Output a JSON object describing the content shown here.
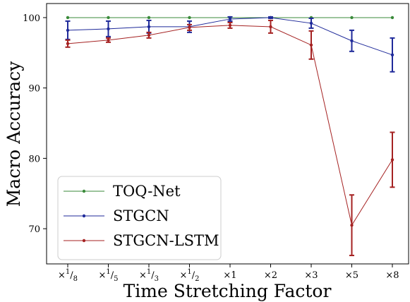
{
  "chart_data": {
    "type": "line",
    "xlabel": "Time Stretching Factor",
    "ylabel": "Macro Accuracy",
    "ylim": [
      65,
      102
    ],
    "yticks": [
      70,
      80,
      90,
      100
    ],
    "grid": false,
    "legend_position": "lower-left",
    "categories": [
      {
        "prefix": "×",
        "num": "1",
        "den": "8"
      },
      {
        "prefix": "×",
        "num": "1",
        "den": "5"
      },
      {
        "prefix": "×",
        "num": "1",
        "den": "3"
      },
      {
        "prefix": "×",
        "num": "1",
        "den": "2"
      },
      {
        "prefix": "×1"
      },
      {
        "prefix": "×2"
      },
      {
        "prefix": "×3"
      },
      {
        "prefix": "×5"
      },
      {
        "prefix": "×8"
      }
    ],
    "series": [
      {
        "name": "TOQ-Net",
        "color": "#3a8a3a",
        "values": [
          100,
          100,
          100,
          100,
          100,
          100,
          100,
          100,
          100
        ],
        "errors": [
          0,
          0,
          0,
          0,
          0,
          0,
          0,
          0,
          0
        ]
      },
      {
        "name": "STGCN",
        "color": "#1f2a9a",
        "values": [
          98.2,
          98.4,
          98.7,
          98.7,
          99.8,
          100,
          99.2,
          96.7,
          94.7
        ],
        "errors": [
          1.3,
          1.1,
          0.9,
          0.8,
          0.3,
          0.1,
          0.7,
          1.5,
          2.4
        ]
      },
      {
        "name": "STGCN-LSTM",
        "color": "#a52222",
        "values": [
          96.3,
          96.8,
          97.5,
          98.6,
          98.9,
          98.7,
          96.1,
          70.5,
          79.8
        ],
        "errors": [
          0.5,
          0.3,
          0.4,
          0.4,
          0.4,
          0.9,
          2.0,
          4.3,
          3.9
        ]
      }
    ]
  }
}
